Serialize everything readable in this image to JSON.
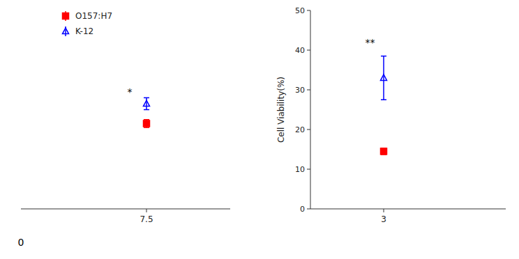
{
  "chart_data": [
    {
      "type": "scatter",
      "x": [
        7.5
      ],
      "xlim": [
        4.5,
        9.5
      ],
      "xticks": [
        7.5
      ],
      "ylim": [
        0,
        50
      ],
      "tick_labels": "x",
      "legend": "upper left",
      "series": [
        {
          "name": "O157:H7",
          "color": "#ff0000",
          "marker": "square",
          "values": [
            21.5
          ],
          "errors": [
            1.0
          ]
        },
        {
          "name": "K-12",
          "color": "#0000ff",
          "marker": "triangle-open",
          "values": [
            26.5
          ],
          "errors": [
            1.5
          ]
        }
      ],
      "annotations": [
        {
          "text": "*",
          "x": 7.1,
          "y": 28.0
        },
        {
          "text": "0",
          "x": 4.5,
          "y": -8
        }
      ]
    },
    {
      "type": "scatter",
      "x": [
        3
      ],
      "xlim": [
        1.5,
        5.5
      ],
      "xticks": [
        3
      ],
      "ylim": [
        0,
        50
      ],
      "yticks": [
        0,
        10,
        20,
        30,
        40,
        50
      ],
      "y_label": "Cell Viability(%)",
      "series": [
        {
          "color": "#ff0000",
          "marker": "square",
          "values": [
            14.5
          ],
          "errors": [
            0.8
          ]
        },
        {
          "color": "#0000ff",
          "marker": "triangle-open",
          "values": [
            33.0
          ],
          "errors": [
            5.5
          ]
        }
      ],
      "annotations": [
        {
          "text": "**",
          "x": 2.72,
          "y": 40.5
        }
      ]
    }
  ]
}
